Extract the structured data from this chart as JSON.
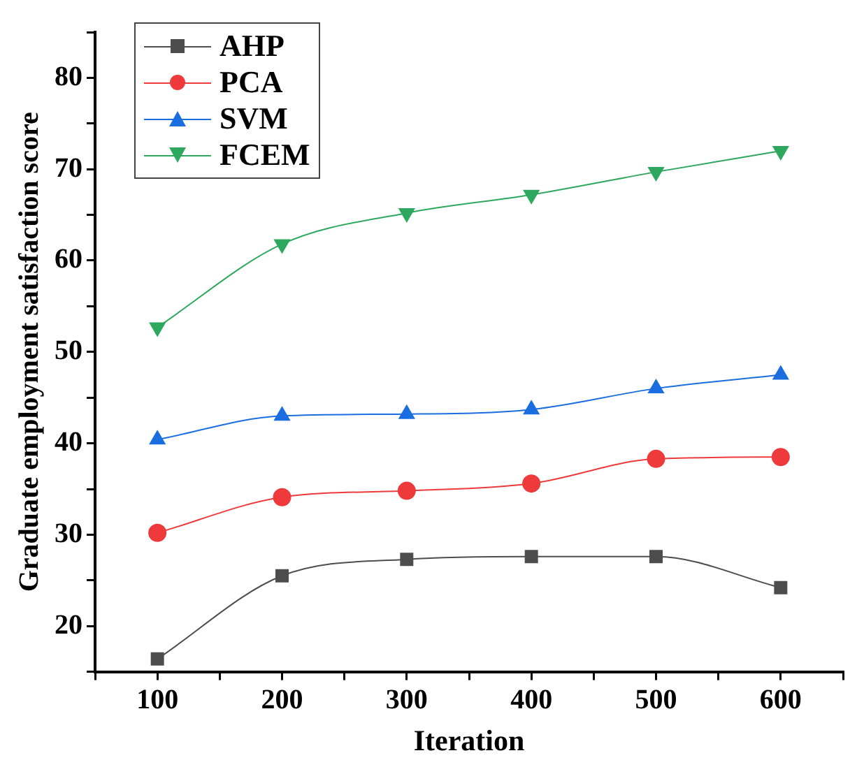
{
  "chart_data": {
    "type": "line",
    "xlabel": "Iteration",
    "ylabel": "Graduate employment satisfaction score",
    "x": [
      100,
      200,
      300,
      400,
      500,
      600
    ],
    "series": [
      {
        "name": "AHP",
        "color": "#4d4d4d",
        "marker": "square",
        "values": [
          16.4,
          25.5,
          27.3,
          27.6,
          27.6,
          24.2
        ]
      },
      {
        "name": "PCA",
        "color": "#ee3a3a",
        "marker": "circle",
        "values": [
          30.2,
          34.1,
          34.8,
          35.6,
          38.3,
          38.5
        ]
      },
      {
        "name": "SVM",
        "color": "#1a6ee0",
        "marker": "triangle",
        "values": [
          40.4,
          43.0,
          43.2,
          43.7,
          46.0,
          47.5
        ]
      },
      {
        "name": "FCEM",
        "color": "#2ea85f",
        "marker": "triangle-down",
        "values": [
          52.7,
          61.8,
          65.2,
          67.2,
          69.7,
          72.0
        ]
      }
    ],
    "xlim": [
      50,
      650
    ],
    "xticks": [
      {
        "value": 50,
        "label": null
      },
      100,
      {
        "value": 150,
        "label": null
      },
      200,
      {
        "value": 250,
        "label": null
      },
      300,
      {
        "value": 350,
        "label": null
      },
      400,
      {
        "value": 450,
        "label": null
      },
      500,
      {
        "value": 550,
        "label": null
      },
      600,
      {
        "value": 650,
        "label": null
      }
    ],
    "ylim": [
      15,
      85
    ],
    "yticks": [
      {
        "value": 15,
        "label": null
      },
      20,
      {
        "value": 25,
        "label": null
      },
      30,
      {
        "value": 35,
        "label": null
      },
      40,
      {
        "value": 45,
        "label": null
      },
      50,
      {
        "value": 55,
        "label": null
      },
      60,
      {
        "value": 65,
        "label": null
      },
      70,
      {
        "value": 75,
        "label": null
      },
      80,
      {
        "value": 85,
        "label": null
      }
    ],
    "grid": false,
    "legend": "top left",
    "line_style": "solid"
  }
}
